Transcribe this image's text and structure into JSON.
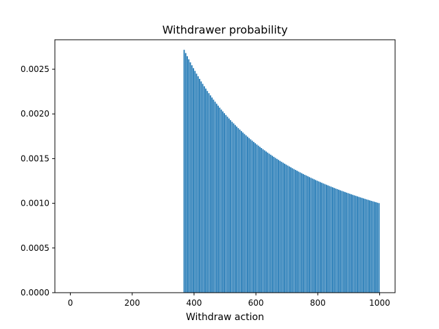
{
  "chart_data": {
    "type": "bar",
    "title": "Withdrawer probability",
    "xlabel": "Withdraw action",
    "ylabel": "",
    "xlim": [
      -50,
      1050
    ],
    "ylim": [
      0,
      0.00283
    ],
    "x_ticks": [
      0,
      200,
      400,
      600,
      800,
      1000
    ],
    "x_tick_labels": [
      "0",
      "200",
      "400",
      "600",
      "800",
      "1000"
    ],
    "y_ticks": [
      0,
      0.0005,
      0.001,
      0.0015,
      0.002,
      0.0025
    ],
    "y_tick_labels": [
      "0.0000",
      "0.0005",
      "0.0010",
      "0.0015",
      "0.0020",
      "0.0025"
    ],
    "grid": false,
    "legend": "none",
    "bar_color": "#1f77b4",
    "series": [
      {
        "x_start": 368,
        "x_end": 1000,
        "x_step": 5,
        "bar_width": 4,
        "description_of_values": "probability = 1/x for each withdraw action x",
        "values_at": {
          "368": 0.002717,
          "400": 0.0025,
          "500": 0.002,
          "600": 0.001667,
          "700": 0.001429,
          "800": 0.00125,
          "900": 0.001111,
          "1000": 0.001
        }
      }
    ]
  }
}
